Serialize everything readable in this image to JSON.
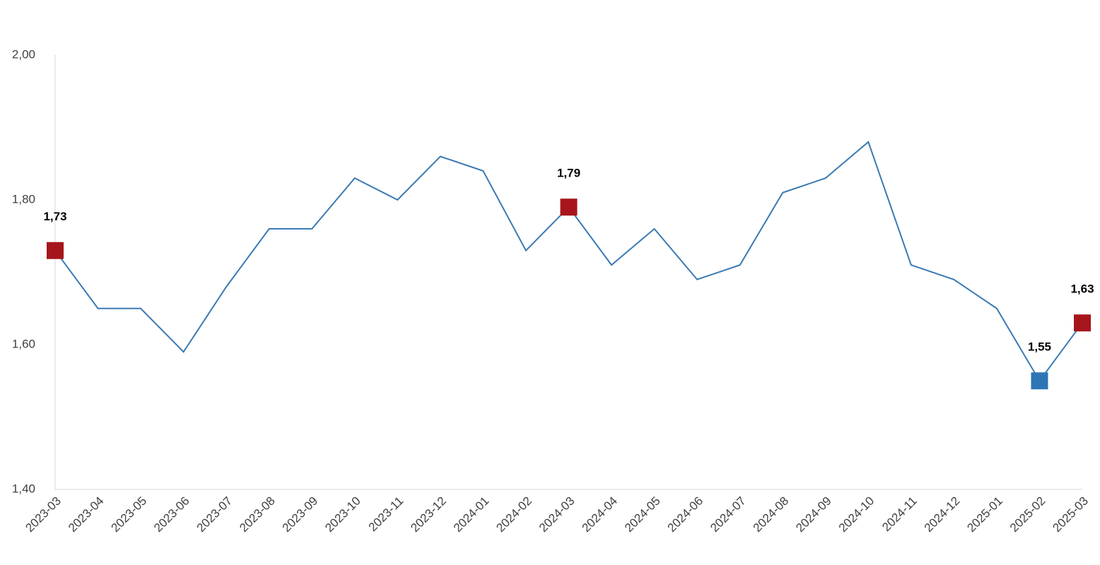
{
  "chart_data": {
    "type": "line",
    "categories": [
      "2023-03",
      "2023-04",
      "2023-05",
      "2023-06",
      "2023-07",
      "2023-08",
      "2023-09",
      "2023-10",
      "2023-11",
      "2023-12",
      "2024-01",
      "2024-02",
      "2024-03",
      "2024-04",
      "2024-05",
      "2024-06",
      "2024-07",
      "2024-08",
      "2024-09",
      "2024-10",
      "2024-11",
      "2024-12",
      "2025-01",
      "2025-02",
      "2025-03"
    ],
    "values": [
      1.73,
      1.65,
      1.65,
      1.59,
      1.68,
      1.76,
      1.76,
      1.83,
      1.8,
      1.86,
      1.84,
      1.73,
      1.79,
      1.71,
      1.76,
      1.69,
      1.71,
      1.81,
      1.83,
      1.88,
      1.71,
      1.69,
      1.65,
      1.55,
      1.63
    ],
    "value_labels": [
      "1,73",
      null,
      null,
      null,
      null,
      null,
      null,
      null,
      null,
      null,
      null,
      null,
      "1,79",
      null,
      null,
      null,
      null,
      null,
      null,
      null,
      null,
      null,
      null,
      "1,55",
      "1,63"
    ],
    "marker_colors": [
      "#a6151b",
      null,
      null,
      null,
      null,
      null,
      null,
      null,
      null,
      null,
      null,
      null,
      "#a6151b",
      null,
      null,
      null,
      null,
      null,
      null,
      null,
      null,
      null,
      null,
      "#2e75b6",
      "#a6151b"
    ],
    "color": "#3a7ab3",
    "ylim": [
      1.4,
      2.0
    ],
    "yticks": [
      {
        "value": 1.4,
        "label": "1,40"
      },
      {
        "value": 1.6,
        "label": "1,60"
      },
      {
        "value": 1.8,
        "label": "1,80"
      },
      {
        "value": 2.0,
        "label": "2,00"
      }
    ],
    "grid": false
  }
}
